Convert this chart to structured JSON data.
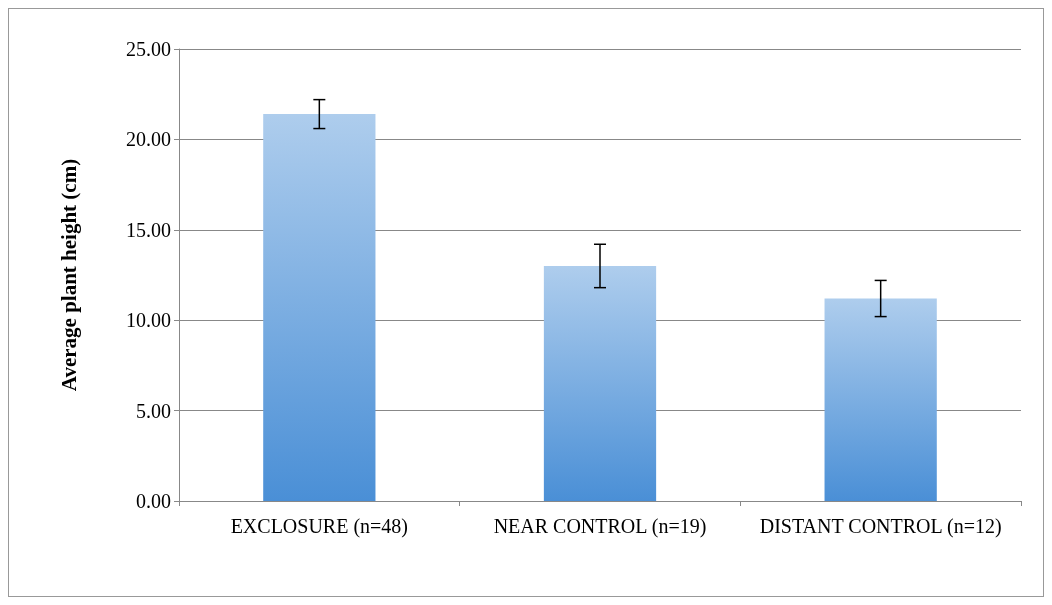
{
  "chart_data": {
    "type": "bar",
    "ylabel": "Average plant height (cm)",
    "categories": [
      "EXCLOSURE (n=48)",
      "NEAR CONTROL (n=19)",
      "DISTANT CONTROL (n=12)"
    ],
    "values": [
      21.4,
      13.0,
      11.2
    ],
    "errors": [
      0.8,
      1.2,
      1.0
    ],
    "color": "#4a8fd6",
    "ylim": [
      0,
      25
    ],
    "yticks": [
      {
        "value": 0,
        "label": "0.00"
      },
      {
        "value": 5,
        "label": "5.00"
      },
      {
        "value": 10,
        "label": "10.00"
      },
      {
        "value": 15,
        "label": "15.00"
      },
      {
        "value": 20,
        "label": "20.00"
      },
      {
        "value": 25,
        "label": "25.00"
      }
    ],
    "grid": "y"
  }
}
